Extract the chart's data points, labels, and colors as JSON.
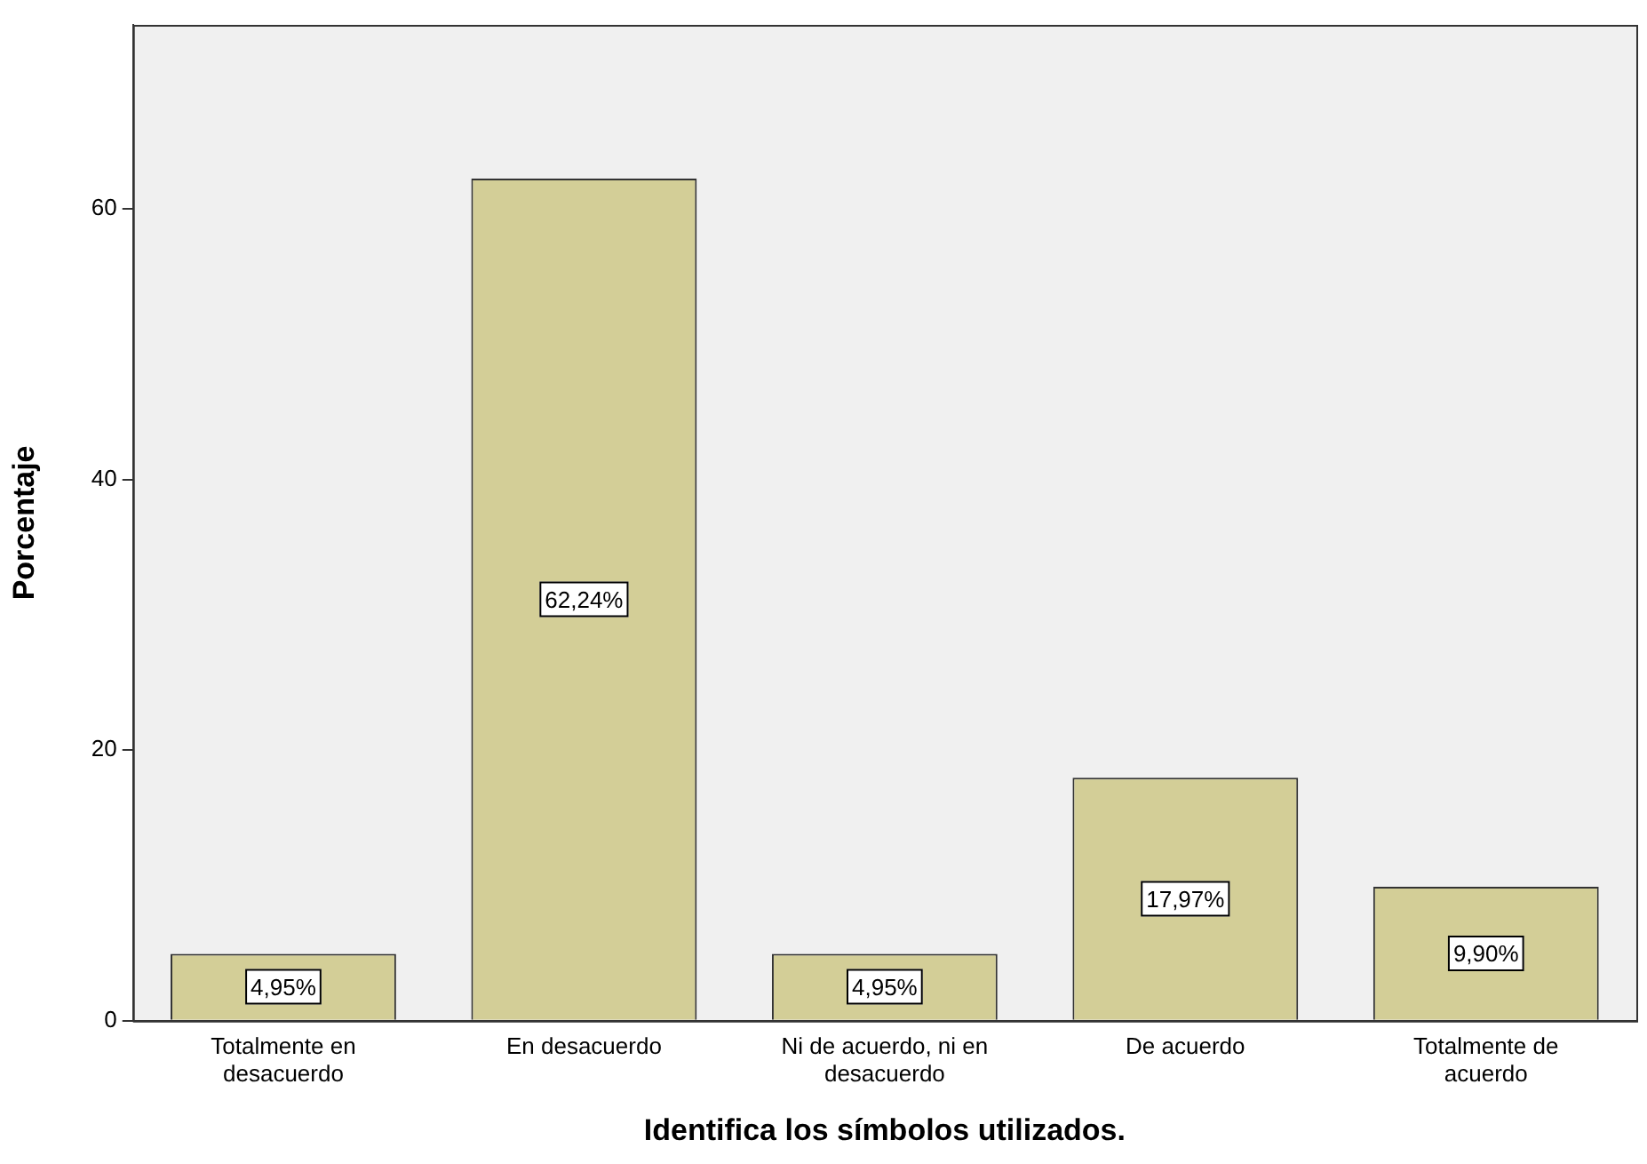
{
  "chart_data": {
    "type": "bar",
    "xlabel": "Identifica los símbolos utilizados.",
    "ylabel": "Porcentaje",
    "categories": [
      "Totalmente en desacuerdo",
      "En desacuerdo",
      "Ni de acuerdo, ni en desacuerdo",
      "De acuerdo",
      "Totalmente de acuerdo"
    ],
    "values": [
      4.95,
      62.24,
      4.95,
      17.97,
      9.9
    ],
    "value_labels": [
      "4,95%",
      "62,24%",
      "4,95%",
      "17,97%",
      "9,90%"
    ],
    "color": "#d3ce97",
    "ylim": [
      0,
      73.6
    ],
    "yticks": [
      0,
      20,
      40,
      60
    ],
    "grid": false,
    "legend": false
  }
}
